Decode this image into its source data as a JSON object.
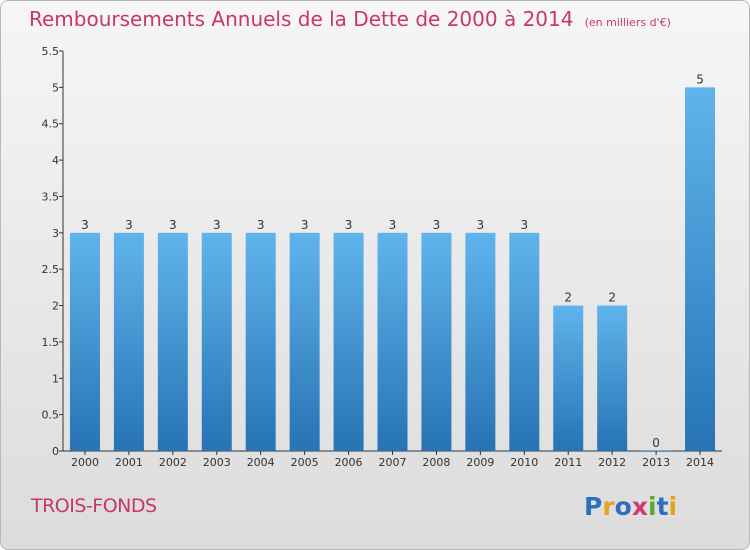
{
  "title": "Remboursements Annuels de la Dette de 2000 à 2014",
  "unit_note": "(en milliers d'€)",
  "commune": "TROIS-FONDS",
  "logo": {
    "text": "Proxiti",
    "letter_colors": [
      "#2d6fbf",
      "#e8a020",
      "#2d6fbf",
      "#d23a6e",
      "#5aa83c",
      "#2d6fbf",
      "#e8a020"
    ]
  },
  "colors": {
    "accent": "#c8366e",
    "bar_top": "#60b4ec",
    "bar_bottom": "#2773b4",
    "axis": "#333333"
  },
  "chart_data": {
    "type": "bar",
    "categories": [
      "2000",
      "2001",
      "2002",
      "2003",
      "2004",
      "2005",
      "2006",
      "2007",
      "2008",
      "2009",
      "2010",
      "2011",
      "2012",
      "2013",
      "2014"
    ],
    "values": [
      3,
      3,
      3,
      3,
      3,
      3,
      3,
      3,
      3,
      3,
      3,
      2,
      2,
      0,
      5
    ],
    "data_labels": [
      "3",
      "3",
      "3",
      "3",
      "3",
      "3",
      "3",
      "3",
      "3",
      "3",
      "3",
      "2",
      "2",
      "0",
      "5"
    ],
    "ylim": [
      0,
      5.5
    ],
    "yticks": [
      0,
      0.5,
      1,
      1.5,
      2,
      2.5,
      3,
      3.5,
      4,
      4.5,
      5,
      5.5
    ],
    "ytick_labels": [
      "0",
      "0.5",
      "1",
      "1.5",
      "2",
      "2.5",
      "3",
      "3.5",
      "4",
      "4.5",
      "5",
      "5.5"
    ],
    "grid": false,
    "legend": "none"
  }
}
